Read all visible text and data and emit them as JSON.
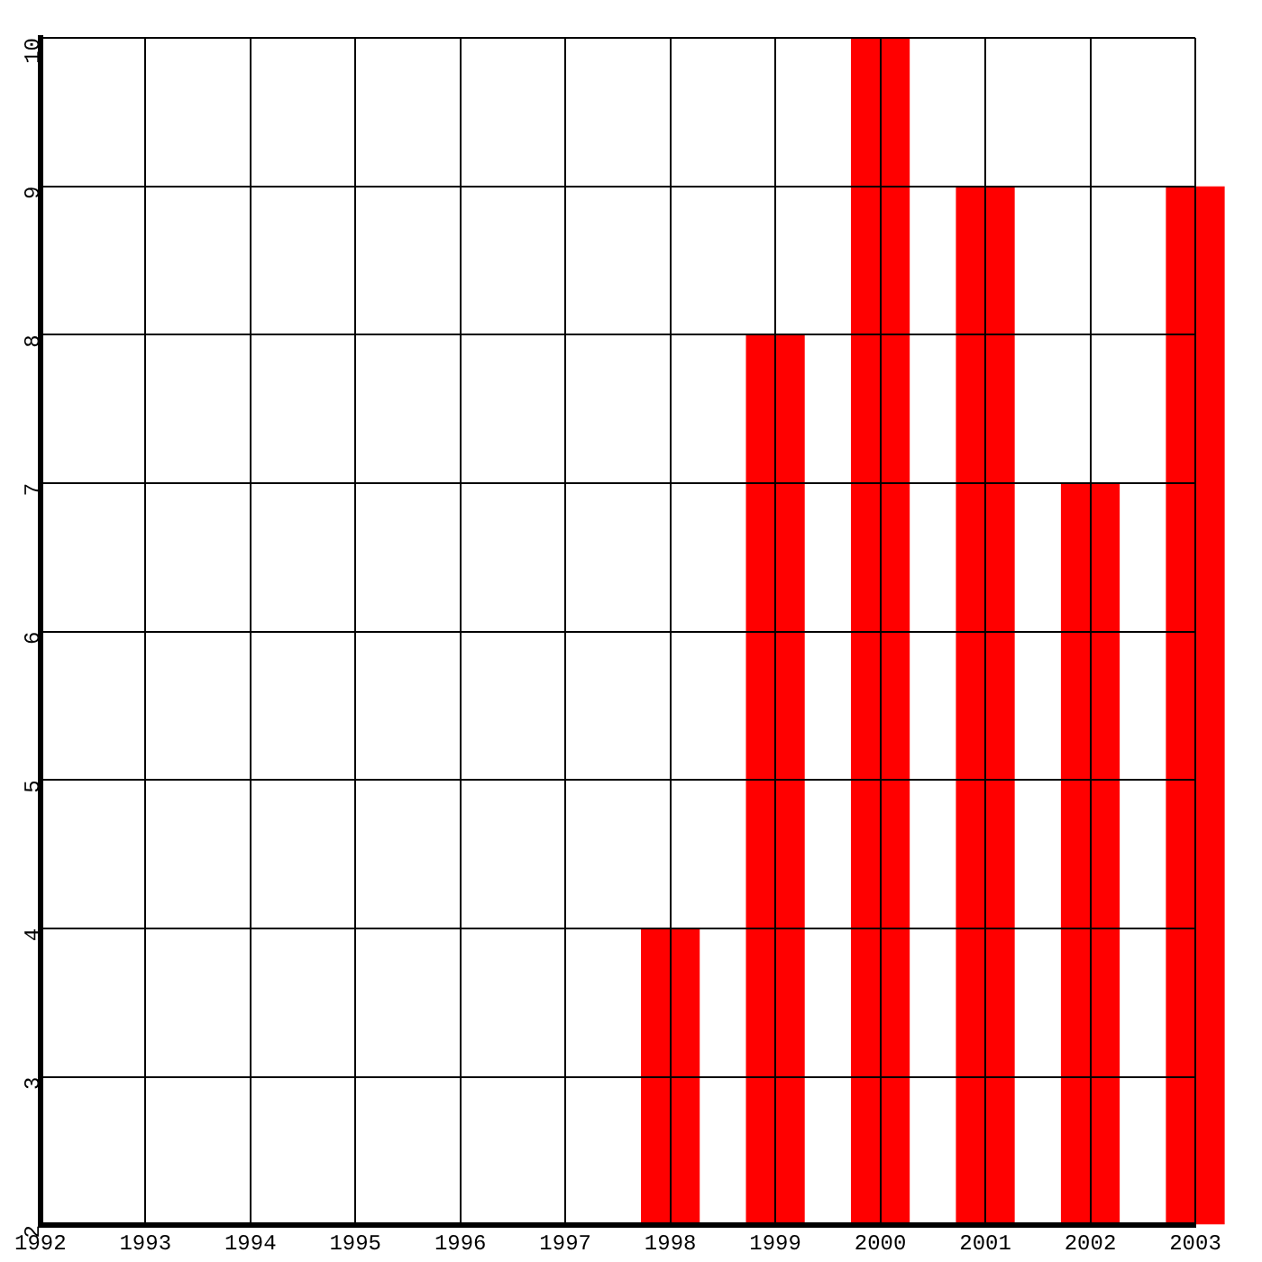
{
  "chart_data": {
    "type": "bar",
    "x": [
      1998,
      1999,
      2000,
      2001,
      2002,
      2003
    ],
    "values": [
      4,
      8,
      10,
      9,
      7,
      9
    ],
    "color": "#ff0000",
    "xlim": [
      1992,
      2003
    ],
    "xticks": [
      1992,
      1993,
      1994,
      1995,
      1996,
      1997,
      1998,
      1999,
      2000,
      2001,
      2002,
      2003
    ],
    "ylim": [
      2,
      10
    ],
    "yticks": [
      2,
      3,
      4,
      5,
      6,
      7,
      8,
      9,
      10
    ],
    "grid": true
  }
}
